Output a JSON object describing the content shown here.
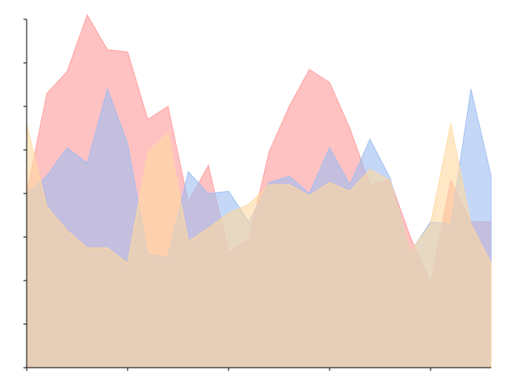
{
  "chart_data": {
    "type": "area",
    "title": "",
    "xlabel": "",
    "ylabel": "",
    "x": [
      0,
      1,
      2,
      3,
      4,
      5,
      6,
      7,
      8,
      9,
      10,
      11,
      12,
      13,
      14,
      15,
      16,
      17,
      18,
      19,
      20,
      21,
      22,
      23
    ],
    "xlim": [
      0,
      23
    ],
    "ylim": [
      0,
      8
    ],
    "x_ticks": [
      0,
      5,
      10,
      15,
      20
    ],
    "y_ticks": [
      0,
      1,
      2,
      3,
      4,
      5,
      6,
      7,
      8
    ],
    "x_tick_labels_visible": false,
    "y_tick_labels_visible": false,
    "grid": false,
    "legend": "none",
    "series": [
      {
        "color": "#ff9a9a",
        "values": [
          4.0,
          6.3,
          6.8,
          8.1,
          7.3,
          7.25,
          5.7,
          6.0,
          3.8,
          4.65,
          2.65,
          2.95,
          4.95,
          6.0,
          6.85,
          6.55,
          5.5,
          4.2,
          4.3,
          3.0,
          1.95,
          4.3,
          3.35,
          3.35
        ]
      },
      {
        "color": "#9dbcf2",
        "values": [
          4.0,
          4.4,
          5.05,
          4.7,
          6.4,
          5.15,
          2.6,
          2.55,
          4.5,
          4.0,
          4.05,
          3.35,
          4.25,
          4.4,
          4.0,
          5.05,
          4.2,
          5.25,
          4.35,
          2.65,
          3.35,
          3.3,
          6.4,
          4.4
        ]
      },
      {
        "color": "#ffd8a0",
        "values": [
          5.6,
          3.7,
          3.15,
          2.75,
          2.75,
          2.4,
          4.95,
          5.4,
          2.9,
          3.2,
          3.55,
          3.75,
          4.2,
          4.2,
          3.95,
          4.25,
          4.05,
          4.55,
          4.3,
          2.65,
          3.3,
          5.6,
          3.3,
          2.4
        ]
      }
    ]
  }
}
